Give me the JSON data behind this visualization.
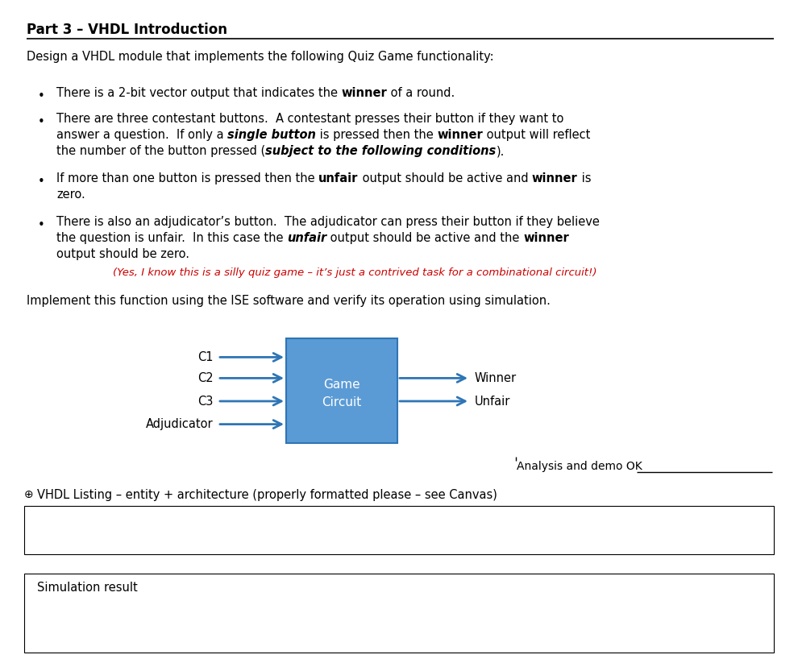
{
  "title": "Part 3 – VHDL Introduction",
  "intro_text": "Design a VHDL module that implements the following Quiz Game functionality:",
  "red_note": "(Yes, I know this is a silly quiz game – it’s just a contrived task for a combinational circuit!)",
  "implement_text": "Implement this function using the ISE software and verify its operation using simulation.",
  "inputs": [
    "C1",
    "C2",
    "C3",
    "Adjudicator"
  ],
  "outputs": [
    "Winner",
    "Unfair"
  ],
  "demo_text": "Analysis and demo OK",
  "vhdl_label": "VHDL Listing – entity + architecture (properly formatted please – see Canvas)",
  "sim_label": "Simulation result",
  "box_fill": "#5B9BD5",
  "box_stroke": "#2E75B6",
  "arrow_color": "#2E75B6",
  "background": "#ffffff",
  "text_color": "#000000",
  "red_color": "#CC0000",
  "title_fontsize": 12,
  "body_fontsize": 10.5,
  "bullet_fontsize": 10.5,
  "figw": 9.9,
  "figh": 8.23,
  "dpi": 100
}
